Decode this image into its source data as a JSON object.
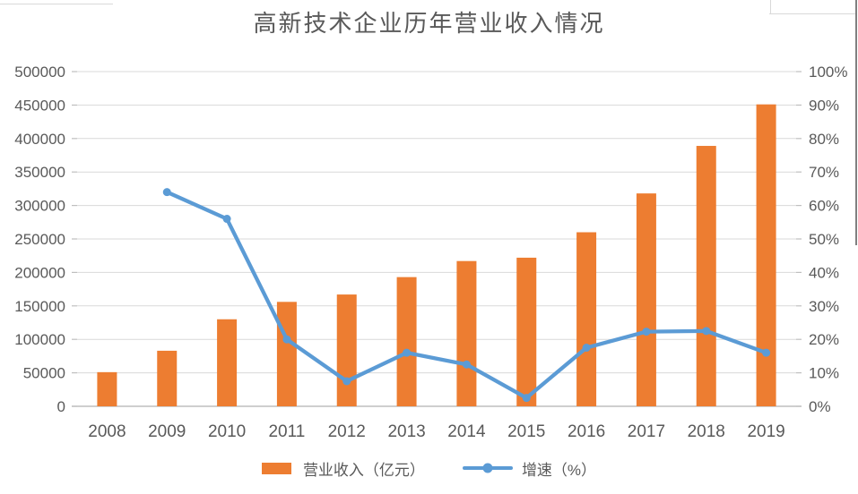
{
  "colors": {
    "bar": "#ED7D31",
    "line": "#5B9BD5",
    "gridline": "#D9D9D9",
    "axis_line": "#BFBFBF",
    "label": "#595959"
  },
  "chart_data": {
    "type": "combo",
    "title": "高新技术企业历年营业收入情况",
    "categories": [
      "2008",
      "2009",
      "2010",
      "2011",
      "2012",
      "2013",
      "2014",
      "2015",
      "2016",
      "2017",
      "2018",
      "2019"
    ],
    "series": [
      {
        "name": "营业收入（亿元）",
        "type": "bar",
        "axis": "left",
        "values": [
          51000,
          83000,
          130000,
          156000,
          167000,
          193000,
          217000,
          222000,
          260000,
          318000,
          389000,
          451000
        ]
      },
      {
        "name": "增速（%）",
        "type": "line",
        "axis": "right",
        "values": [
          null,
          64,
          56,
          20,
          7.5,
          16,
          12.5,
          2.5,
          17.5,
          22.3,
          22.5,
          16
        ]
      }
    ],
    "left_axis": {
      "min": 0,
      "max": 500000,
      "step": 50000,
      "tick_labels": [
        "0",
        "50000",
        "100000",
        "150000",
        "200000",
        "250000",
        "300000",
        "350000",
        "400000",
        "450000",
        "500000"
      ]
    },
    "right_axis": {
      "min": 0,
      "max": 100,
      "step": 10,
      "tick_labels": [
        "0%",
        "10%",
        "20%",
        "30%",
        "40%",
        "50%",
        "60%",
        "70%",
        "80%",
        "90%",
        "100%"
      ]
    },
    "grid": true,
    "legend_position": "bottom"
  }
}
